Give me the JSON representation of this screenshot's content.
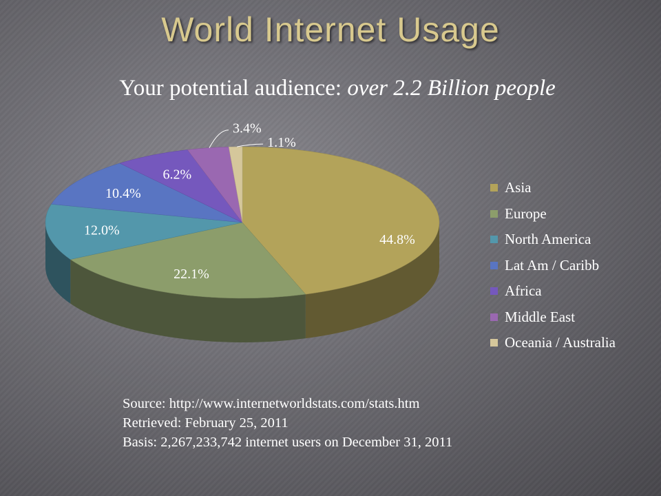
{
  "slide": {
    "title": "World Internet Usage",
    "subtitle_main": "Your potential audience: ",
    "subtitle_em": "over 2.2 Billion people"
  },
  "source": {
    "line1": "Source: http://www.internetworldstats.com/stats.htm",
    "line2": "Retrieved: February  25, 2011",
    "line3": "Basis: 2,267,233,742 internet users on December 31, 2011"
  },
  "chart_data": {
    "type": "pie",
    "title": "",
    "categories": [
      "Asia",
      "Europe",
      "North America",
      "Lat Am / Caribb",
      "Africa",
      "Middle East",
      "Oceania / Australia"
    ],
    "values": [
      44.8,
      22.1,
      12.0,
      10.4,
      6.2,
      3.4,
      1.1
    ],
    "data_labels": [
      "44.8%",
      "22.1%",
      "12.0%",
      "10.4%",
      "6.2%",
      "3.4%",
      "1.1%"
    ],
    "colors": [
      "#b3a35a",
      "#8c9d6b",
      "#5397ab",
      "#5975c2",
      "#7558bd",
      "#9a68b1",
      "#d5c79b"
    ],
    "legend_position": "right",
    "style": "3d-tilted"
  }
}
